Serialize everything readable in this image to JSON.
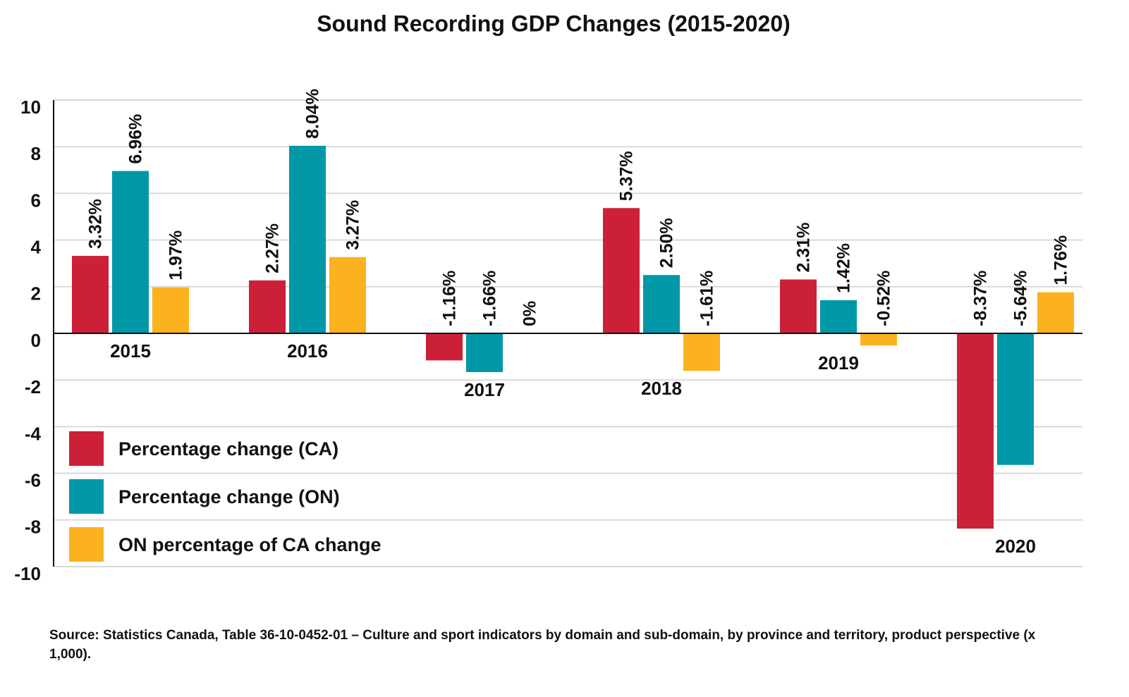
{
  "chart_data": {
    "type": "bar",
    "title": "Sound Recording GDP Changes (2015-2020)",
    "categories": [
      "2015",
      "2016",
      "2017",
      "2018",
      "2019",
      "2020"
    ],
    "series": [
      {
        "name": "Percentage change (CA)",
        "color": "#cc2038",
        "values": [
          3.32,
          2.27,
          -1.16,
          5.37,
          2.31,
          -8.37
        ],
        "value_labels": [
          "3.32%",
          "2.27%",
          "-1.16%",
          "5.37%",
          "2.31%",
          "-8.37%"
        ]
      },
      {
        "name": "Percentage change (ON)",
        "color": "#0097a7",
        "values": [
          6.96,
          8.04,
          -1.66,
          2.5,
          1.42,
          -5.64
        ],
        "value_labels": [
          "6.96%",
          "8.04%",
          "-1.66%",
          "2.50%",
          "1.42%",
          "-5.64%"
        ]
      },
      {
        "name": "ON percentage of CA change",
        "color": "#fbb21e",
        "values": [
          1.97,
          3.27,
          0,
          -1.61,
          -0.52,
          1.76
        ],
        "value_labels": [
          "1.97%",
          "3.27%",
          "0%",
          "-1.61%",
          "-0.52%",
          "1.76%"
        ]
      }
    ],
    "ylim": [
      -10,
      10
    ],
    "yticks": [
      -10,
      -8,
      -6,
      -4,
      -2,
      0,
      2,
      4,
      6,
      8,
      10
    ],
    "grid": true,
    "legend": "lower left",
    "note": "Source: Statistics Canada, Table 36-10-0452-01 – Culture and sport indicators by domain and sub-domain, by province and territory, product perspective (x 1,000)."
  }
}
